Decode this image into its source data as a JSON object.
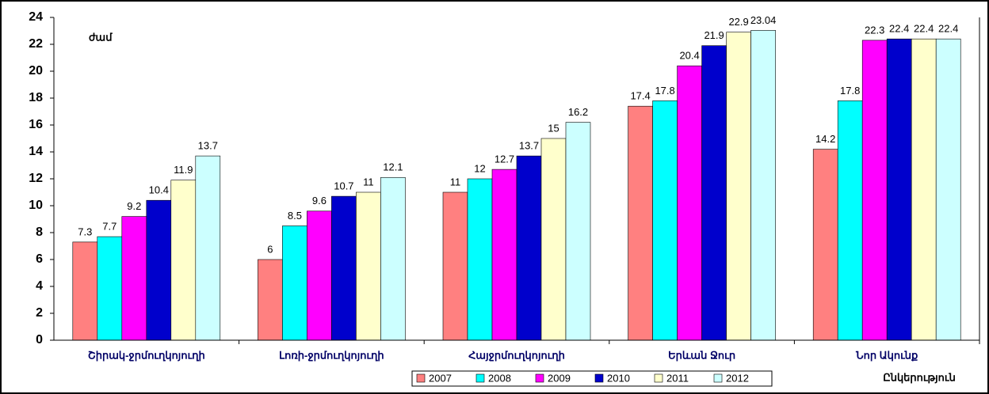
{
  "chart_data": {
    "type": "bar",
    "y_axis_label": "ժամ",
    "x_axis_label": "Ընկերություն",
    "categories": [
      "Շիրակ-ջրմուղկոյուղի",
      "Լոռի-ջրմուղկոյուղի",
      "Հայջրմուղկոյուղի",
      "Երևան Ջուր",
      "Նոր Ակունք"
    ],
    "series": [
      {
        "name": "2007",
        "color": "#ff8080",
        "values": [
          7.3,
          6,
          11,
          17.4,
          14.2
        ]
      },
      {
        "name": "2008",
        "color": "#00ffff",
        "values": [
          7.7,
          8.5,
          12,
          17.8,
          17.8
        ]
      },
      {
        "name": "2009",
        "color": "#ff00ff",
        "values": [
          9.2,
          9.6,
          12.7,
          20.4,
          22.3
        ]
      },
      {
        "name": "2010",
        "color": "#0000cc",
        "values": [
          10.4,
          10.7,
          13.7,
          21.9,
          22.4
        ]
      },
      {
        "name": "2011",
        "color": "#ffffcc",
        "values": [
          11.9,
          11,
          15,
          22.9,
          22.4
        ]
      },
      {
        "name": "2012",
        "color": "#ccffff",
        "values": [
          13.7,
          12.1,
          16.2,
          23.04,
          22.4
        ]
      }
    ],
    "ylim": [
      0,
      24
    ],
    "yticks": [
      0,
      2,
      4,
      6,
      8,
      10,
      12,
      14,
      16,
      18,
      20,
      22,
      24
    ],
    "grid": false,
    "legend": "bottom"
  }
}
